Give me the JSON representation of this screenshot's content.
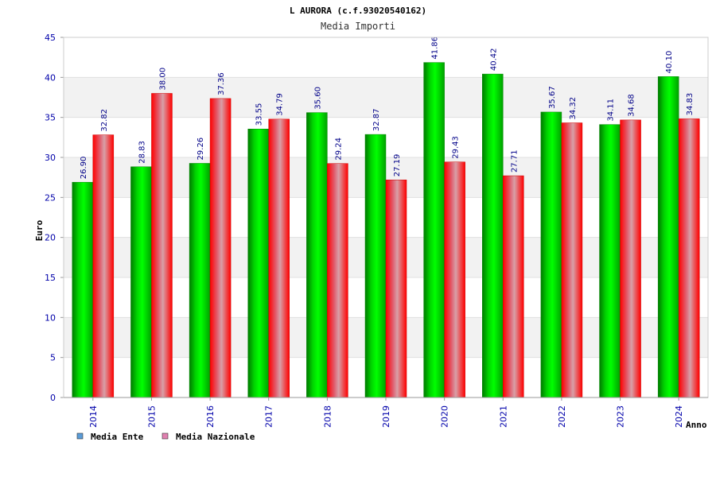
{
  "chart_data": {
    "type": "bar",
    "title": "L AURORA (c.f.93020540162)",
    "subtitle": "Media Importi",
    "xlabel": "Anno",
    "ylabel": "Euro",
    "ylim": [
      0,
      45
    ],
    "yticks": [
      0,
      5,
      10,
      15,
      20,
      25,
      30,
      35,
      40,
      45
    ],
    "categories": [
      "2014",
      "2015",
      "2016",
      "2017",
      "2018",
      "2019",
      "2020",
      "2021",
      "2022",
      "2023",
      "2024"
    ],
    "series": [
      {
        "name": "Media Ente",
        "color": "#00c000",
        "values": [
          26.9,
          28.83,
          29.26,
          33.55,
          35.6,
          32.87,
          41.86,
          40.42,
          35.67,
          34.11,
          40.1
        ],
        "labels": [
          "26.90",
          "28.83",
          "29.26",
          "33.55",
          "35.60",
          "32.87",
          "41.86",
          "40.42",
          "35.67",
          "34.11",
          "40.10"
        ]
      },
      {
        "name": "Media Nazionale",
        "color": "#ff0000",
        "values": [
          32.82,
          38.0,
          37.36,
          34.79,
          29.24,
          27.19,
          29.43,
          27.71,
          34.32,
          34.68,
          34.83
        ],
        "labels": [
          "32.82",
          "38.00",
          "37.36",
          "34.79",
          "29.24",
          "27.19",
          "29.43",
          "27.71",
          "34.32",
          "34.68",
          "34.83"
        ]
      }
    ],
    "legend_position": "bottom-left",
    "grid": true
  }
}
